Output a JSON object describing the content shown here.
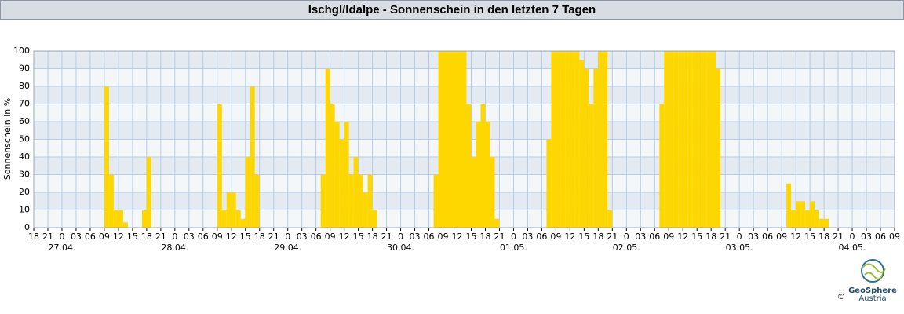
{
  "chart_data": {
    "type": "bar",
    "title": "Ischgl/Idalpe - Sonnenschein in den letzten 7 Tagen",
    "ylabel": "Sonnenschein in %",
    "color": "#ffd700",
    "grid": true,
    "xlim": [
      0,
      183
    ],
    "ylim": [
      0,
      100
    ],
    "yticks": [
      0,
      10,
      20,
      30,
      40,
      50,
      60,
      70,
      80,
      90,
      100
    ],
    "xticks": [
      {
        "value": 0,
        "label": "18"
      },
      {
        "value": 3,
        "label": "21"
      },
      {
        "value": 6,
        "label": "0"
      },
      {
        "value": 9,
        "label": "03"
      },
      {
        "value": 12,
        "label": "06"
      },
      {
        "value": 15,
        "label": "09"
      },
      {
        "value": 18,
        "label": "12"
      },
      {
        "value": 21,
        "label": "15"
      },
      {
        "value": 24,
        "label": "18"
      },
      {
        "value": 27,
        "label": "21"
      },
      {
        "value": 30,
        "label": "0"
      },
      {
        "value": 33,
        "label": "03"
      },
      {
        "value": 36,
        "label": "06"
      },
      {
        "value": 39,
        "label": "09"
      },
      {
        "value": 42,
        "label": "12"
      },
      {
        "value": 45,
        "label": "15"
      },
      {
        "value": 48,
        "label": "18"
      },
      {
        "value": 51,
        "label": "21"
      },
      {
        "value": 54,
        "label": "0"
      },
      {
        "value": 57,
        "label": "03"
      },
      {
        "value": 60,
        "label": "06"
      },
      {
        "value": 63,
        "label": "09"
      },
      {
        "value": 66,
        "label": "12"
      },
      {
        "value": 69,
        "label": "15"
      },
      {
        "value": 72,
        "label": "18"
      },
      {
        "value": 75,
        "label": "21"
      },
      {
        "value": 78,
        "label": "0"
      },
      {
        "value": 81,
        "label": "03"
      },
      {
        "value": 84,
        "label": "06"
      },
      {
        "value": 87,
        "label": "09"
      },
      {
        "value": 90,
        "label": "12"
      },
      {
        "value": 93,
        "label": "15"
      },
      {
        "value": 96,
        "label": "18"
      },
      {
        "value": 99,
        "label": "21"
      },
      {
        "value": 102,
        "label": "0"
      },
      {
        "value": 105,
        "label": "03"
      },
      {
        "value": 108,
        "label": "06"
      },
      {
        "value": 111,
        "label": "09"
      },
      {
        "value": 114,
        "label": "12"
      },
      {
        "value": 117,
        "label": "15"
      },
      {
        "value": 120,
        "label": "18"
      },
      {
        "value": 123,
        "label": "21"
      },
      {
        "value": 126,
        "label": "0"
      },
      {
        "value": 129,
        "label": "03"
      },
      {
        "value": 132,
        "label": "06"
      },
      {
        "value": 135,
        "label": "09"
      },
      {
        "value": 138,
        "label": "12"
      },
      {
        "value": 141,
        "label": "15"
      },
      {
        "value": 144,
        "label": "18"
      },
      {
        "value": 147,
        "label": "21"
      },
      {
        "value": 150,
        "label": "0"
      },
      {
        "value": 153,
        "label": "03"
      },
      {
        "value": 156,
        "label": "06"
      },
      {
        "value": 159,
        "label": "09"
      },
      {
        "value": 162,
        "label": "12"
      },
      {
        "value": 165,
        "label": "15"
      },
      {
        "value": 168,
        "label": "18"
      },
      {
        "value": 171,
        "label": "21"
      },
      {
        "value": 174,
        "label": "0"
      },
      {
        "value": 177,
        "label": "03"
      },
      {
        "value": 180,
        "label": "06"
      },
      {
        "value": 183,
        "label": "09"
      }
    ],
    "date_labels": [
      {
        "value": 6,
        "label": "27.04."
      },
      {
        "value": 30,
        "label": "28.04."
      },
      {
        "value": 54,
        "label": "29.04."
      },
      {
        "value": 78,
        "label": "30.04."
      },
      {
        "value": 102,
        "label": "01.05."
      },
      {
        "value": 126,
        "label": "02.05."
      },
      {
        "value": 150,
        "label": "03.05."
      },
      {
        "value": 174,
        "label": "04.05."
      }
    ],
    "x": [
      0,
      1,
      2,
      3,
      4,
      5,
      6,
      7,
      8,
      9,
      10,
      11,
      12,
      13,
      14,
      15,
      16,
      17,
      18,
      19,
      20,
      21,
      22,
      23,
      24,
      25,
      26,
      27,
      28,
      29,
      30,
      31,
      32,
      33,
      34,
      35,
      36,
      37,
      38,
      39,
      40,
      41,
      42,
      43,
      44,
      45,
      46,
      47,
      48,
      49,
      50,
      51,
      52,
      53,
      54,
      55,
      56,
      57,
      58,
      59,
      60,
      61,
      62,
      63,
      64,
      65,
      66,
      67,
      68,
      69,
      70,
      71,
      72,
      73,
      74,
      75,
      76,
      77,
      78,
      79,
      80,
      81,
      82,
      83,
      84,
      85,
      86,
      87,
      88,
      89,
      90,
      91,
      92,
      93,
      94,
      95,
      96,
      97,
      98,
      99,
      100,
      101,
      102,
      103,
      104,
      105,
      106,
      107,
      108,
      109,
      110,
      111,
      112,
      113,
      114,
      115,
      116,
      117,
      118,
      119,
      120,
      121,
      122,
      123,
      124,
      125,
      126,
      127,
      128,
      129,
      130,
      131,
      132,
      133,
      134,
      135,
      136,
      137,
      138,
      139,
      140,
      141,
      142,
      143,
      144,
      145,
      146,
      147,
      148,
      149,
      150,
      151,
      152,
      153,
      154,
      155,
      156,
      157,
      158,
      159,
      160,
      161,
      162,
      163,
      164,
      165,
      166,
      167,
      168,
      169,
      170,
      171,
      172,
      173,
      174,
      175,
      176,
      177,
      178,
      179,
      180,
      181,
      182
    ],
    "values": [
      0,
      0,
      0,
      0,
      0,
      0,
      0,
      0,
      0,
      0,
      0,
      0,
      0,
      0,
      0,
      80,
      30,
      10,
      10,
      3,
      0,
      0,
      0,
      10,
      40,
      0,
      0,
      0,
      0,
      0,
      0,
      0,
      0,
      0,
      0,
      0,
      0,
      0,
      0,
      70,
      10,
      20,
      20,
      10,
      5,
      40,
      80,
      30,
      0,
      0,
      0,
      0,
      0,
      0,
      0,
      0,
      0,
      0,
      0,
      0,
      0,
      30,
      90,
      70,
      60,
      50,
      60,
      30,
      40,
      30,
      20,
      30,
      10,
      0,
      0,
      0,
      0,
      0,
      0,
      0,
      0,
      0,
      0,
      0,
      0,
      30,
      100,
      100,
      100,
      100,
      100,
      100,
      70,
      40,
      60,
      70,
      60,
      40,
      5,
      0,
      0,
      0,
      0,
      0,
      0,
      0,
      0,
      0,
      0,
      50,
      100,
      100,
      100,
      100,
      100,
      100,
      95,
      90,
      70,
      90,
      100,
      100,
      10,
      0,
      0,
      0,
      0,
      0,
      0,
      0,
      0,
      0,
      0,
      70,
      100,
      100,
      100,
      100,
      100,
      100,
      100,
      100,
      100,
      100,
      100,
      90,
      0,
      0,
      0,
      0,
      0,
      0,
      0,
      0,
      0,
      0,
      0,
      0,
      0,
      0,
      25,
      10,
      15,
      15,
      10,
      15,
      10,
      5,
      5,
      0,
      0,
      0,
      0,
      0,
      0,
      0,
      0,
      0,
      0,
      0,
      0,
      0,
      0
    ]
  },
  "logo": {
    "name": "GeoSphere",
    "subname": "Austria",
    "copyright": "©"
  }
}
